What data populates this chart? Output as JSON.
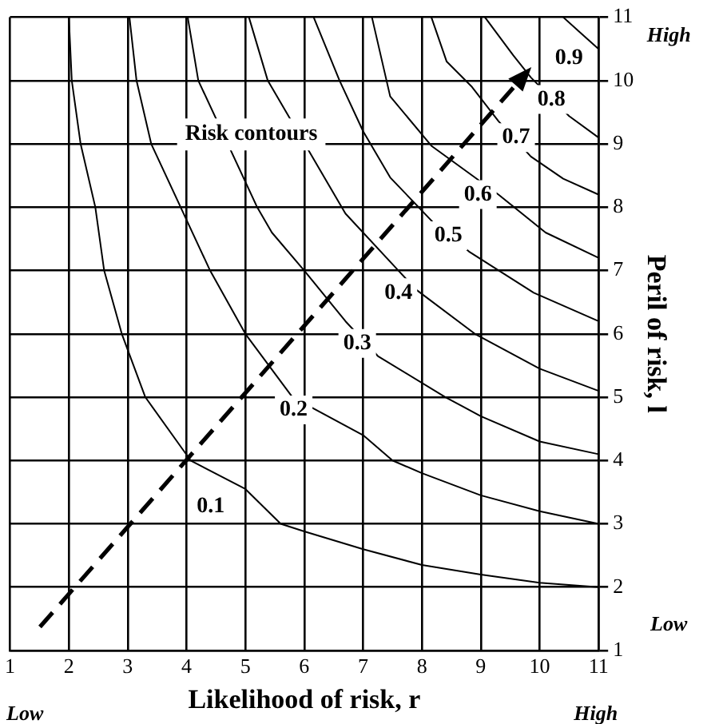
{
  "chart_data": {
    "type": "line",
    "xlabel": "Likelihood of risk, r",
    "ylabel": "Peril of risk, l",
    "xlim": [
      1,
      11
    ],
    "xticks": [
      1,
      2,
      3,
      4,
      5,
      6,
      7,
      8,
      9,
      10,
      11
    ],
    "ylim": [
      1,
      11
    ],
    "yticks": [
      1,
      2,
      3,
      4,
      5,
      6,
      7,
      8,
      9,
      10,
      11
    ],
    "grid": true,
    "legend": false,
    "marker": "none",
    "series": [
      {
        "color": "#000000",
        "x": [
          2,
          2.05,
          2.2,
          2.45,
          2.6,
          2.9,
          3.3,
          4.07,
          5,
          5.6,
          6,
          7,
          8,
          9,
          10,
          11
        ],
        "values": [
          11,
          10,
          9,
          8,
          7,
          6,
          5,
          4,
          3.55,
          3,
          2.88,
          2.6,
          2.35,
          2.2,
          2.07,
          2
        ]
      },
      {
        "color": "#000000",
        "x": [
          3.03,
          3.15,
          3.4,
          3.9,
          4.4,
          5,
          5.8,
          7,
          7.5,
          8,
          9,
          10,
          11
        ],
        "values": [
          11,
          10,
          9,
          8,
          7,
          6,
          5,
          4.4,
          4,
          3.8,
          3.45,
          3.2,
          3
        ]
      },
      {
        "color": "#000000",
        "x": [
          4.02,
          4.2,
          4.6,
          5.2,
          5.45,
          6,
          6.7,
          7.25,
          8.4,
          9,
          10,
          11
        ],
        "values": [
          11,
          10,
          null,
          8,
          7.6,
          7,
          6.2,
          5.65,
          5,
          4.7,
          4.3,
          4.1
        ]
      },
      {
        "color": "#000000",
        "x": [
          5.06,
          5.38,
          5.9,
          6.7,
          7.6,
          7.9,
          8.9,
          10,
          11
        ],
        "values": [
          11,
          10,
          null,
          7.9,
          7,
          6.7,
          6,
          5.45,
          5.1
        ]
      },
      {
        "color": "#000000",
        "x": [
          6.16,
          6.6,
          7,
          7.46,
          8.2,
          8.8,
          9.9,
          11
        ],
        "values": [
          11,
          10,
          9.2,
          8.47,
          7.75,
          7.3,
          6.65,
          6.2
        ]
      },
      {
        "color": "#000000",
        "x": [
          7.15,
          7.46,
          8.16,
          8.7,
          9.3,
          10.1,
          11
        ],
        "values": [
          11,
          9.75,
          8.97,
          null,
          8.2,
          7.6,
          7.2
        ]
      },
      {
        "color": "#000000",
        "x": [
          8.16,
          8.42,
          8.85,
          9.3,
          9.85,
          10.4,
          11
        ],
        "values": [
          11,
          10.3,
          9.9,
          9.36,
          8.8,
          8.45,
          8.2
        ]
      },
      {
        "color": "#000000",
        "x": [
          9.07,
          9.55,
          9.85,
          10.5,
          11
        ],
        "values": [
          11,
          10.4,
          10.05,
          9.44,
          9.1
        ]
      },
      {
        "color": "#000000",
        "x": [
          10.4,
          10.7,
          11
        ],
        "values": [
          11,
          10.75,
          10.5
        ]
      }
    ],
    "annotations": [
      {
        "text": "0.1",
        "x": 4.41,
        "y": 3.27
      },
      {
        "text": "0.2",
        "x": 5.82,
        "y": 4.8
      },
      {
        "text": "0.3",
        "x": 6.9,
        "y": 5.85
      },
      {
        "text": "0.4",
        "x": 7.6,
        "y": 6.65
      },
      {
        "text": "0.5",
        "x": 8.45,
        "y": 7.55
      },
      {
        "text": "0.6",
        "x": 8.95,
        "y": 8.2
      },
      {
        "text": "0.7",
        "x": 9.6,
        "y": 9.1
      },
      {
        "text": "0.8",
        "x": 10.2,
        "y": 9.7
      },
      {
        "text": "0.9",
        "x": 10.5,
        "y": 10.35
      },
      "Risk contours",
      "High",
      "Low",
      "Low",
      "High"
    ]
  }
}
